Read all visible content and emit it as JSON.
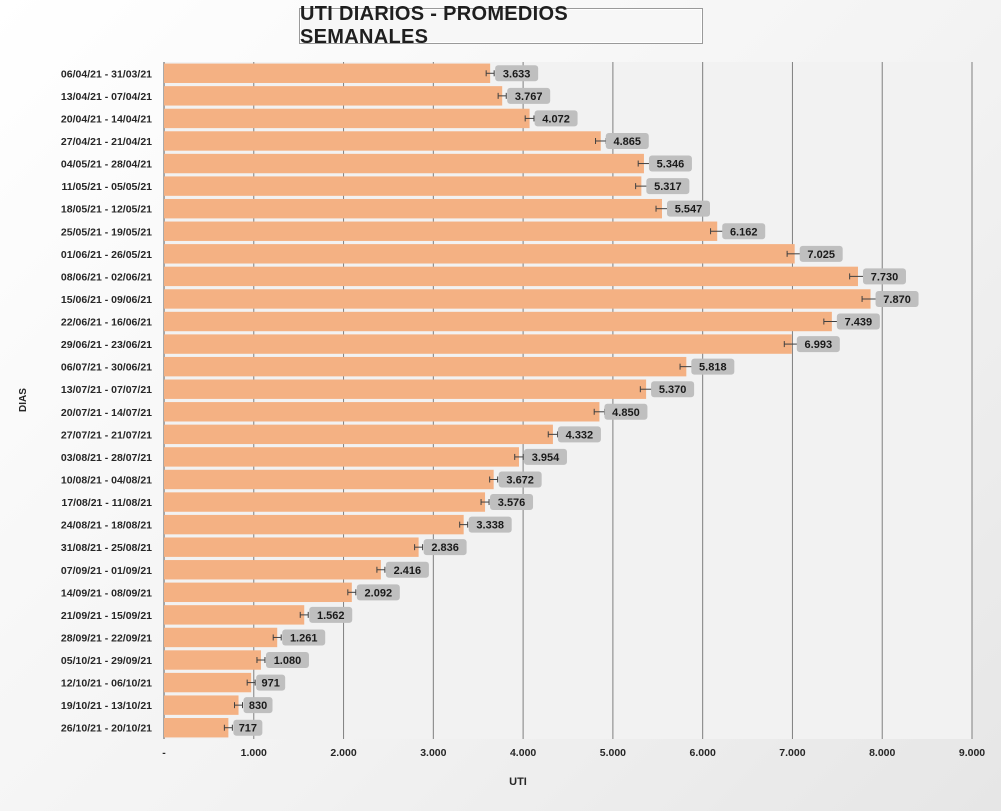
{
  "chart_data": {
    "type": "bar",
    "orientation": "horizontal",
    "title": "UTI DIARIOS - PROMEDIOS SEMANALES",
    "xlabel": "UTI",
    "ylabel": "DIAS",
    "xlim": [
      0,
      9000
    ],
    "xticks": [
      0,
      1000,
      2000,
      3000,
      4000,
      5000,
      6000,
      7000,
      8000,
      9000
    ],
    "xtick_labels": [
      "-",
      "1.000",
      "2.000",
      "3.000",
      "4.000",
      "5.000",
      "6.000",
      "7.000",
      "8.000",
      "9.000"
    ],
    "grid": "vertical",
    "error_bars": true,
    "categories": [
      "06/04/21 - 31/03/21",
      "13/04/21 - 07/04/21",
      "20/04/21 - 14/04/21",
      "27/04/21 - 21/04/21",
      "04/05/21 - 28/04/21",
      "11/05/21 - 05/05/21",
      "18/05/21 - 12/05/21",
      "25/05/21 - 19/05/21",
      "01/06/21 - 26/05/21",
      "08/06/21 - 02/06/21",
      "15/06/21 - 09/06/21",
      "22/06/21 - 16/06/21",
      "29/06/21 - 23/06/21",
      "06/07/21 - 30/06/21",
      "13/07/21 - 07/07/21",
      "20/07/21 - 14/07/21",
      "27/07/21 - 21/07/21",
      "03/08/21 - 28/07/21",
      "10/08/21 - 04/08/21",
      "17/08/21 - 11/08/21",
      "24/08/21 - 18/08/21",
      "31/08/21 - 25/08/21",
      "07/09/21 - 01/09/21",
      "14/09/21 - 08/09/21",
      "21/09/21 - 15/09/21",
      "28/09/21 - 22/09/21",
      "05/10/21 - 29/09/21",
      "12/10/21 - 06/10/21",
      "19/10/21 - 13/10/21",
      "26/10/21 - 20/10/21"
    ],
    "values": [
      3633,
      3767,
      4072,
      4865,
      5346,
      5317,
      5547,
      6162,
      7025,
      7730,
      7870,
      7439,
      6993,
      5818,
      5370,
      4850,
      4332,
      3954,
      3672,
      3576,
      3338,
      2836,
      2416,
      2092,
      1562,
      1261,
      1080,
      971,
      830,
      717
    ],
    "value_labels": [
      "3.633",
      "3.767",
      "4.072",
      "4.865",
      "5.346",
      "5.317",
      "5.547",
      "6.162",
      "7.025",
      "7.730",
      "7.870",
      "7.439",
      "6.993",
      "5.818",
      "5.370",
      "4.850",
      "4.332",
      "3.954",
      "3.672",
      "3.576",
      "3.338",
      "2.836",
      "2.416",
      "2.092",
      "1.562",
      "1.261",
      "1.080",
      "971",
      "830",
      "717"
    ],
    "colors": {
      "bar": "#F4B183",
      "label_bg": "#BFBFBF",
      "plot_bg": "#F2F2F2",
      "grid": "#7F7F7F",
      "error": "#404040",
      "text": "#262626"
    }
  }
}
